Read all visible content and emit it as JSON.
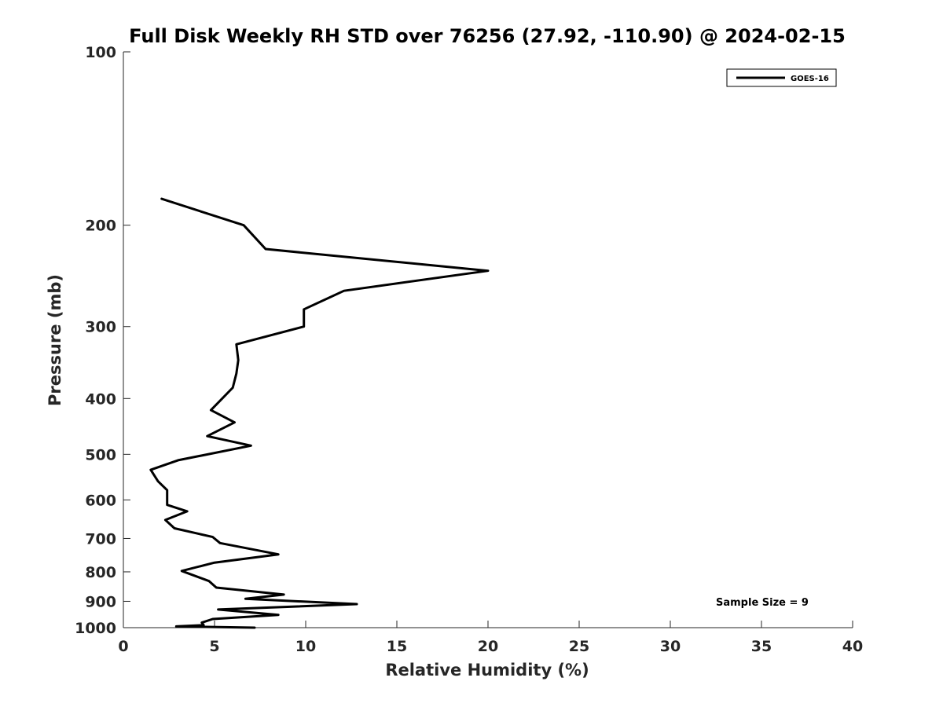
{
  "chart_data": {
    "type": "line",
    "title": "Full Disk Weekly RH STD over 76256 (27.92, -110.90) @ 2024-02-15",
    "xlabel": "Relative Humidity (%)",
    "ylabel": "Pressure (mb)",
    "xlim": [
      0,
      40
    ],
    "ylim": [
      100,
      1000
    ],
    "y_scale": "log",
    "y_reversed": true,
    "grid": false,
    "x_ticks": [
      0,
      5,
      10,
      15,
      20,
      25,
      30,
      35,
      40
    ],
    "y_ticks": [
      100,
      200,
      300,
      400,
      500,
      600,
      700,
      800,
      900,
      1000
    ],
    "x_tick_labels": [
      "0",
      "5",
      "10",
      "15",
      "20",
      "25",
      "30",
      "35",
      "40"
    ],
    "y_tick_labels": [
      "100",
      "200",
      "300",
      "400",
      "500",
      "600",
      "700",
      "800",
      "900",
      "1000"
    ],
    "legend_position": "top-right",
    "series": [
      {
        "name": "GOES-16",
        "color": "#000000",
        "x": [
          2.1,
          6.6,
          7.8,
          20.0,
          12.1,
          9.9,
          9.9,
          6.2,
          6.3,
          6.2,
          6.0,
          4.8,
          6.1,
          4.6,
          7.0,
          3.0,
          1.5,
          1.9,
          2.4,
          2.4,
          2.4,
          3.5,
          2.3,
          2.8,
          4.9,
          5.3,
          8.5,
          5.0,
          3.2,
          4.7,
          5.1,
          8.8,
          6.7,
          12.8,
          5.2,
          8.5,
          4.9,
          4.3,
          4.4,
          2.9,
          7.2
        ],
        "y": [
          180,
          200,
          220,
          240,
          260,
          280,
          300,
          322,
          343,
          362,
          383,
          419,
          440,
          465,
          483,
          512,
          532,
          557,
          577,
          591,
          612,
          628,
          650,
          672,
          696,
          713,
          746,
          771,
          797,
          830,
          852,
          876,
          891,
          910,
          930,
          950,
          966,
          980,
          990,
          995,
          1000
        ]
      }
    ],
    "annotations": [
      "Sample Size = 9"
    ]
  }
}
